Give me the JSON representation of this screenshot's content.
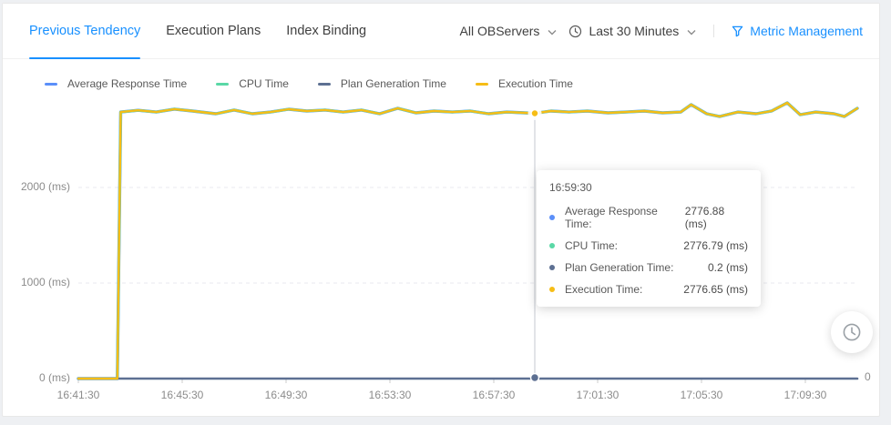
{
  "tabs": [
    {
      "label": "Previous Tendency",
      "active": true
    },
    {
      "label": "Execution Plans",
      "active": false
    },
    {
      "label": "Index Binding",
      "active": false
    }
  ],
  "controls": {
    "server_filter": "All OBServers",
    "time_filter": "Last 30 Minutes",
    "metric_management": "Metric Management"
  },
  "colors": {
    "accent_blue": "#1890ff",
    "series_blue": "#5B8FF9",
    "series_green": "#5AD8A6",
    "series_slate": "#5D7092",
    "series_yellow": "#F6BD16"
  },
  "legend": [
    {
      "label": "Average Response Time",
      "color": "#5B8FF9"
    },
    {
      "label": "CPU Time",
      "color": "#5AD8A6"
    },
    {
      "label": "Plan Generation Time",
      "color": "#5D7092"
    },
    {
      "label": "Execution Time",
      "color": "#F6BD16"
    }
  ],
  "tooltip": {
    "time": "16:59:30",
    "rows": [
      {
        "label": "Average Response Time:",
        "value": "2776.88 (ms)",
        "color": "#5B8FF9"
      },
      {
        "label": "CPU Time:",
        "value": "2776.79 (ms)",
        "color": "#5AD8A6"
      },
      {
        "label": "Plan Generation Time:",
        "value": "0.2 (ms)",
        "color": "#5D7092"
      },
      {
        "label": "Execution Time:",
        "value": "2776.65 (ms)",
        "color": "#F6BD16"
      }
    ]
  },
  "chart_data": {
    "type": "line",
    "x_range": [
      "16:41:30",
      "17:11:30"
    ],
    "y_unit": "ms",
    "ylim": [
      0,
      2900
    ],
    "grid": "horizontal-dashed",
    "legend_position": "top-left",
    "right_axis_label": "0",
    "x_ticks": [
      {
        "label": "16:41:30",
        "min": 0
      },
      {
        "label": "16:45:30",
        "min": 4
      },
      {
        "label": "16:49:30",
        "min": 8
      },
      {
        "label": "16:53:30",
        "min": 12
      },
      {
        "label": "16:57:30",
        "min": 16
      },
      {
        "label": "17:01:30",
        "min": 20
      },
      {
        "label": "17:05:30",
        "min": 24
      },
      {
        "label": "17:09:30",
        "min": 28
      }
    ],
    "y_ticks": [
      {
        "label": "0 (ms)",
        "ms": 0
      },
      {
        "label": "1000 (ms)",
        "ms": 1000
      },
      {
        "label": "2000 (ms)",
        "ms": 2000
      }
    ],
    "marker": {
      "time": "16:59:30",
      "min": 17.58,
      "exec_ms": 2776.65,
      "plan_ms": 0.2
    },
    "points_top": [
      [
        0,
        0
      ],
      [
        1.5,
        0
      ],
      [
        1.63,
        2790
      ],
      [
        2.3,
        2808
      ],
      [
        3.0,
        2790
      ],
      [
        3.7,
        2820
      ],
      [
        4.4,
        2800
      ],
      [
        5.3,
        2771
      ],
      [
        6.0,
        2810
      ],
      [
        6.7,
        2771
      ],
      [
        7.4,
        2790
      ],
      [
        8.1,
        2819
      ],
      [
        8.8,
        2800
      ],
      [
        9.5,
        2810
      ],
      [
        10.2,
        2790
      ],
      [
        10.9,
        2810
      ],
      [
        11.6,
        2771
      ],
      [
        12.3,
        2829
      ],
      [
        13.0,
        2781
      ],
      [
        13.7,
        2800
      ],
      [
        14.4,
        2790
      ],
      [
        15.1,
        2800
      ],
      [
        15.8,
        2771
      ],
      [
        16.5,
        2790
      ],
      [
        17.2,
        2781
      ],
      [
        17.58,
        2776.65
      ],
      [
        18.2,
        2800
      ],
      [
        18.9,
        2790
      ],
      [
        19.6,
        2800
      ],
      [
        20.4,
        2781
      ],
      [
        21.1,
        2790
      ],
      [
        21.8,
        2800
      ],
      [
        22.5,
        2781
      ],
      [
        23.2,
        2790
      ],
      [
        23.6,
        2867
      ],
      [
        24.2,
        2771
      ],
      [
        24.7,
        2743
      ],
      [
        25.4,
        2790
      ],
      [
        26.1,
        2771
      ],
      [
        26.7,
        2800
      ],
      [
        27.3,
        2886
      ],
      [
        27.8,
        2762
      ],
      [
        28.4,
        2790
      ],
      [
        29.1,
        2771
      ],
      [
        29.5,
        2743
      ],
      [
        30.0,
        2829
      ]
    ],
    "points_plan": [
      [
        0,
        0.2
      ],
      [
        30,
        0.2
      ]
    ],
    "series": [
      {
        "name": "Average Response Time",
        "color": "#5B8FF9",
        "points_key": "points_top"
      },
      {
        "name": "CPU Time",
        "color": "#5AD8A6",
        "points_key": "points_top"
      },
      {
        "name": "Plan Generation Time",
        "color": "#5D7092",
        "points_key": "points_plan"
      },
      {
        "name": "Execution Time",
        "color": "#F6BD16",
        "points_key": "points_top"
      }
    ]
  }
}
